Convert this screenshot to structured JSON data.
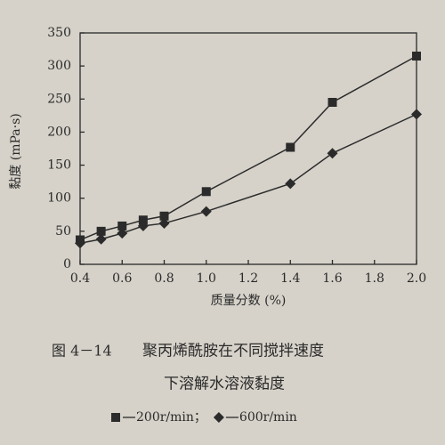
{
  "chart_data": {
    "type": "line",
    "y_label": "黏度 (mPa·s)",
    "x_label": "质量分数 (%)",
    "figure_number": "图 4－14",
    "title_lines": [
      "聚丙烯酰胺在不同搅拌速度",
      "下溶解水溶液黏度"
    ],
    "legend_separator": "；",
    "x": [
      0.4,
      0.5,
      0.6,
      0.7,
      0.8,
      1.0,
      1.4,
      1.6,
      2.0
    ],
    "series": [
      {
        "name": "200r/min",
        "marker": "square",
        "color": "#2b2b2b",
        "values": [
          37,
          50,
          58,
          67,
          73,
          110,
          177,
          245,
          315
        ]
      },
      {
        "name": "600r/min",
        "marker": "diamond",
        "color": "#2b2b2b",
        "values": [
          32,
          38,
          47,
          58,
          62,
          80,
          122,
          168,
          227
        ]
      }
    ],
    "xlim": [
      0.4,
      2.0
    ],
    "xticks": [
      0.4,
      0.6,
      0.8,
      {
        "value": 1.0,
        "label": "1.0"
      },
      1.2,
      1.4,
      1.6,
      1.8,
      {
        "value": 2.0,
        "label": "2.0"
      }
    ],
    "ylim": [
      0,
      350
    ],
    "yticks": [
      0,
      50,
      100,
      150,
      200,
      250,
      300,
      350
    ],
    "grid": false
  }
}
